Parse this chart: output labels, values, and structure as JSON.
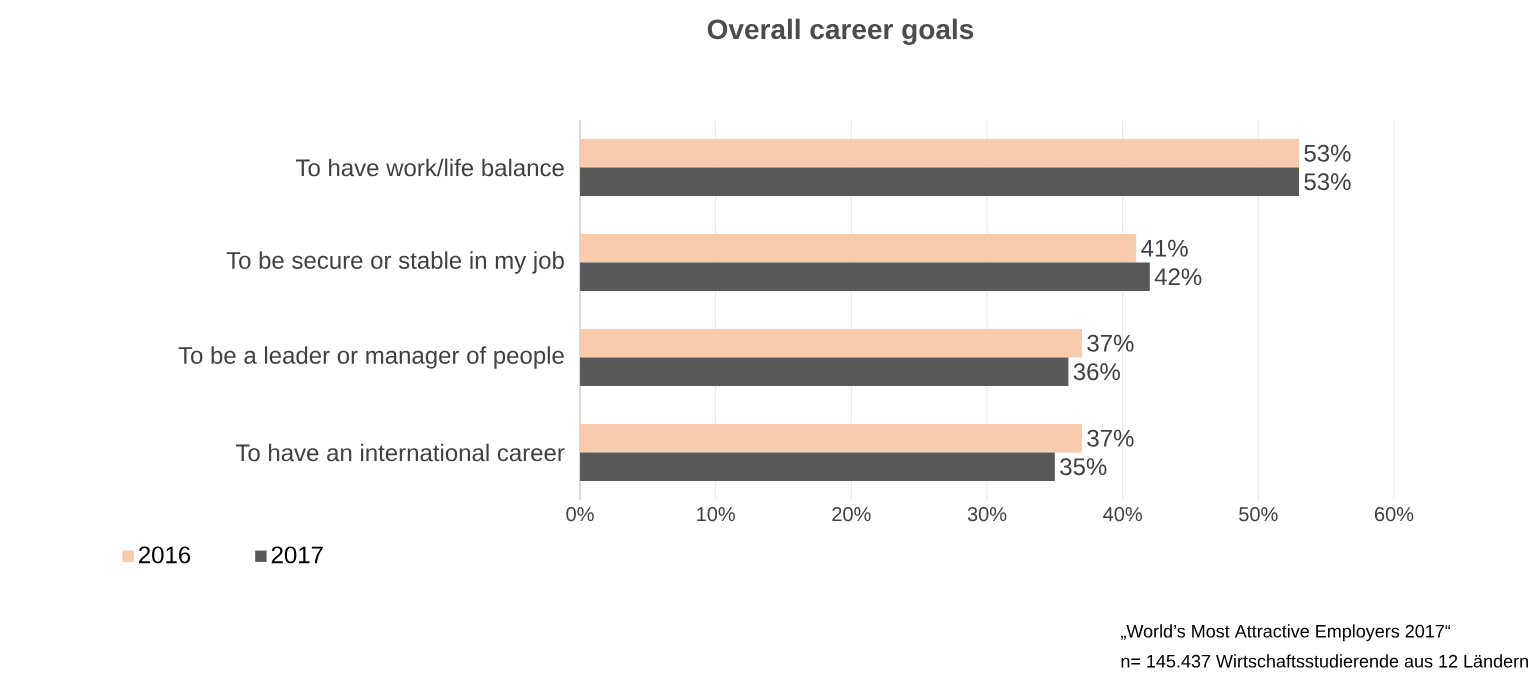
{
  "chart_data": {
    "type": "bar",
    "orientation": "horizontal",
    "title": "Overall career goals",
    "categories": [
      "To have work/life balance",
      "To be secure or stable in my job",
      "To be a leader or manager of people",
      "To have an international career"
    ],
    "series": [
      {
        "name": "2016",
        "color": "#f8cbad",
        "values": [
          53,
          41,
          37,
          37
        ],
        "value_labels": [
          "53%",
          "41%",
          "37%",
          "37%"
        ]
      },
      {
        "name": "2017",
        "color": "#595959",
        "values": [
          53,
          42,
          36,
          35
        ],
        "value_labels": [
          "53%",
          "42%",
          "36%",
          "35%"
        ]
      }
    ],
    "xlim": [
      0,
      60
    ],
    "xticks": [
      {
        "value": 0,
        "label": "0%"
      },
      {
        "value": 10,
        "label": "10%"
      },
      {
        "value": 20,
        "label": "20%"
      },
      {
        "value": 30,
        "label": "30%"
      },
      {
        "value": 40,
        "label": "40%"
      },
      {
        "value": 50,
        "label": "50%"
      },
      {
        "value": 60,
        "label": "60%"
      }
    ],
    "grid": "x",
    "legend": "bottom left",
    "annotations": [
      "„World’s Most Attractive Employers 2017“",
      "n= 145.437 Wirtschaftsstudierende aus 12 Ländern"
    ]
  }
}
